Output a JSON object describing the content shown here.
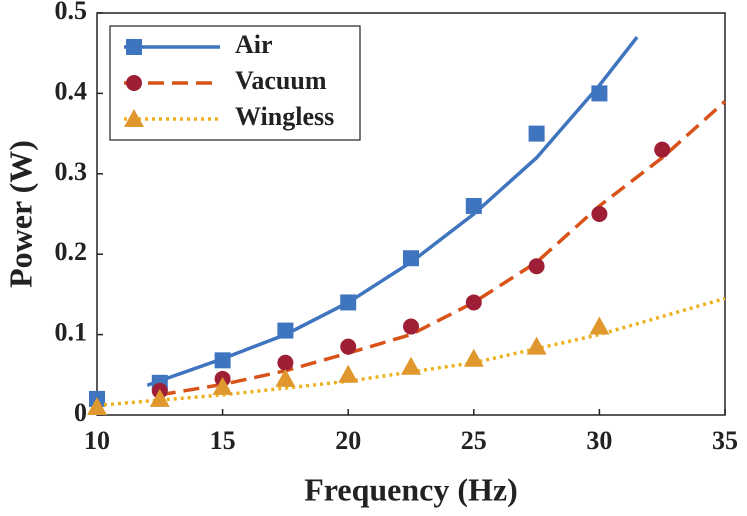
{
  "chart_data": {
    "type": "line",
    "xlabel": "Frequency (Hz)",
    "ylabel": "Power (W)",
    "xlim": [
      10,
      35
    ],
    "xticks": [
      10,
      15,
      20,
      25,
      30,
      35
    ],
    "ylim": [
      0,
      0.5
    ],
    "yticks": [
      0,
      0.1,
      0.2,
      0.3,
      0.4,
      0.5
    ],
    "legend": "upper left",
    "series": [
      {
        "name": "Air",
        "color": "#3f74bf",
        "line_color": "#3f74bf",
        "marker": "square",
        "linestyle": "solid",
        "x": [
          10,
          12.5,
          15,
          17.5,
          20,
          22.5,
          25,
          27.5,
          30
        ],
        "values": [
          0.02,
          0.04,
          0.068,
          0.105,
          0.14,
          0.195,
          0.26,
          0.35,
          0.4
        ],
        "fit_x": [
          12,
          15,
          17.5,
          20,
          22.5,
          25,
          27.5,
          30,
          31.5
        ],
        "fit_values": [
          0.037,
          0.07,
          0.1,
          0.14,
          0.19,
          0.25,
          0.32,
          0.41,
          0.47
        ]
      },
      {
        "name": "Vacuum",
        "color": "#9e1f35",
        "line_color": "#d95319",
        "marker": "circle",
        "linestyle": "dashed",
        "x": [
          12.5,
          15,
          17.5,
          20,
          22.5,
          25,
          27.5,
          30,
          32.5
        ],
        "values": [
          0.03,
          0.045,
          0.065,
          0.085,
          0.11,
          0.14,
          0.185,
          0.25,
          0.33
        ],
        "fit_x": [
          12.5,
          15,
          17.5,
          20,
          22.5,
          25,
          27.5,
          30,
          32.5,
          35
        ],
        "fit_values": [
          0.025,
          0.038,
          0.055,
          0.077,
          0.1,
          0.14,
          0.19,
          0.26,
          0.32,
          0.39
        ]
      },
      {
        "name": "Wingless",
        "color": "#e0982e",
        "line_color": "#edb120",
        "marker": "triangle",
        "linestyle": "dotted",
        "x": [
          10,
          12.5,
          15,
          17.5,
          20,
          22.5,
          25,
          27.5,
          30
        ],
        "values": [
          0.01,
          0.02,
          0.035,
          0.045,
          0.05,
          0.06,
          0.07,
          0.085,
          0.11
        ],
        "fit_x": [
          10,
          15,
          20,
          25,
          30,
          35
        ],
        "fit_values": [
          0.012,
          0.025,
          0.042,
          0.065,
          0.1,
          0.145
        ]
      }
    ]
  }
}
